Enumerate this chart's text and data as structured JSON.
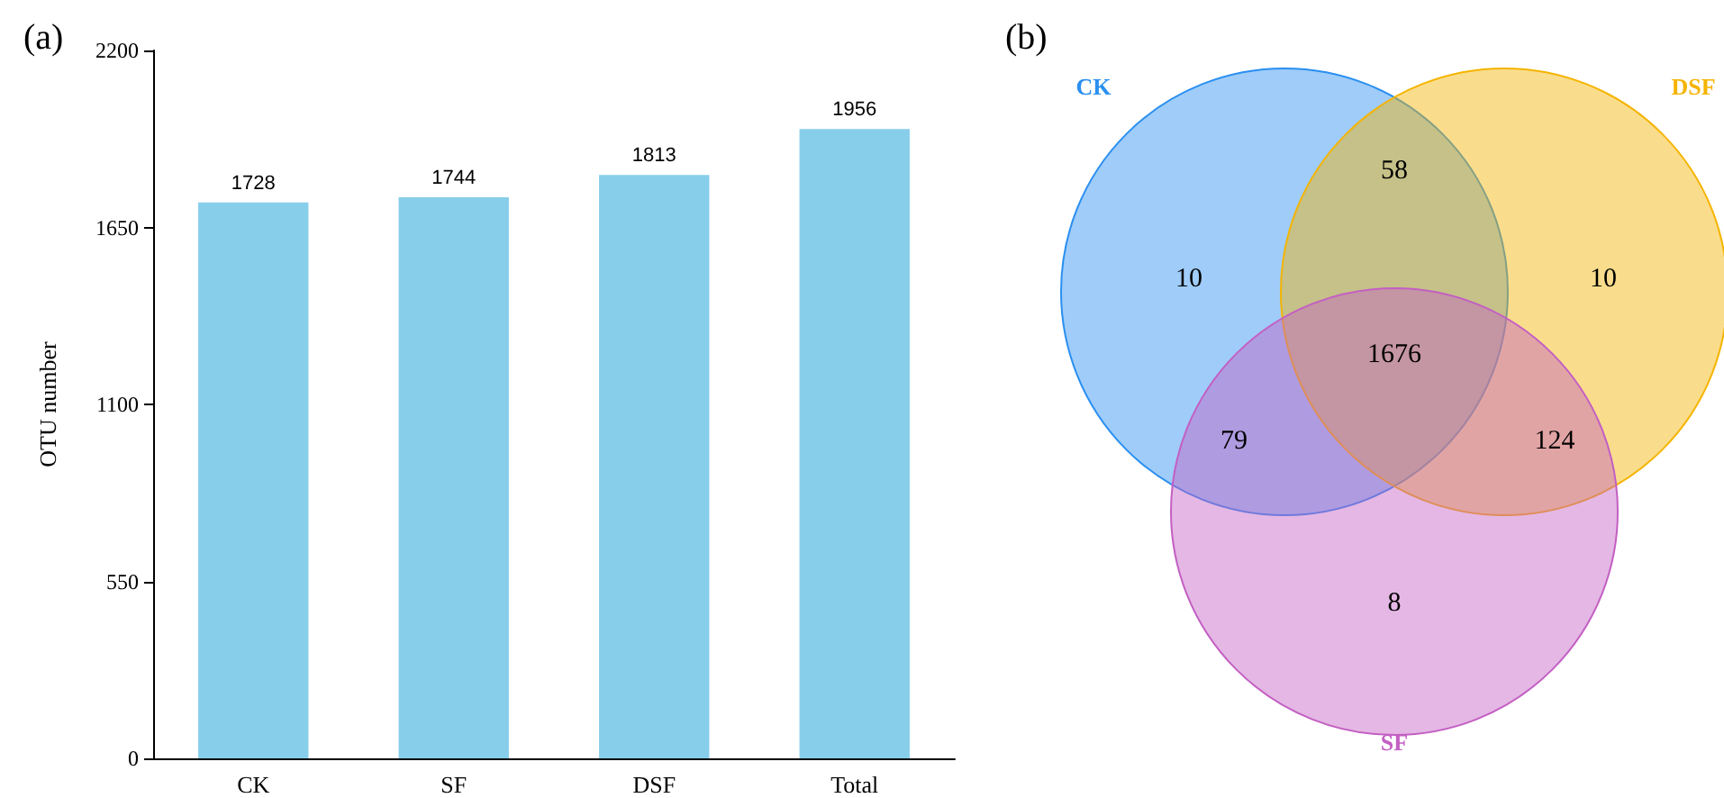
{
  "chart_data": [
    {
      "type": "bar",
      "title": "(a)",
      "ylabel": "OTU number",
      "categories": [
        "CK",
        "SF",
        "DSF",
        "Total"
      ],
      "values": [
        1728,
        1744,
        1813,
        1956
      ],
      "color": "#87ceeb",
      "ylim": [
        0,
        2200
      ],
      "yticks": [
        0,
        550,
        1100,
        1650,
        2200
      ],
      "data_labels": true,
      "grid": false
    },
    {
      "type": "other",
      "title": "(b)",
      "categories": [
        "CK",
        "DSF",
        "SF"
      ],
      "colors": [
        "#2a8ff0",
        "#f5b400",
        "#c35fc3"
      ],
      "annotations": [
        "10",
        "58",
        "10",
        "79",
        "1676",
        "124",
        "8"
      ]
    }
  ]
}
